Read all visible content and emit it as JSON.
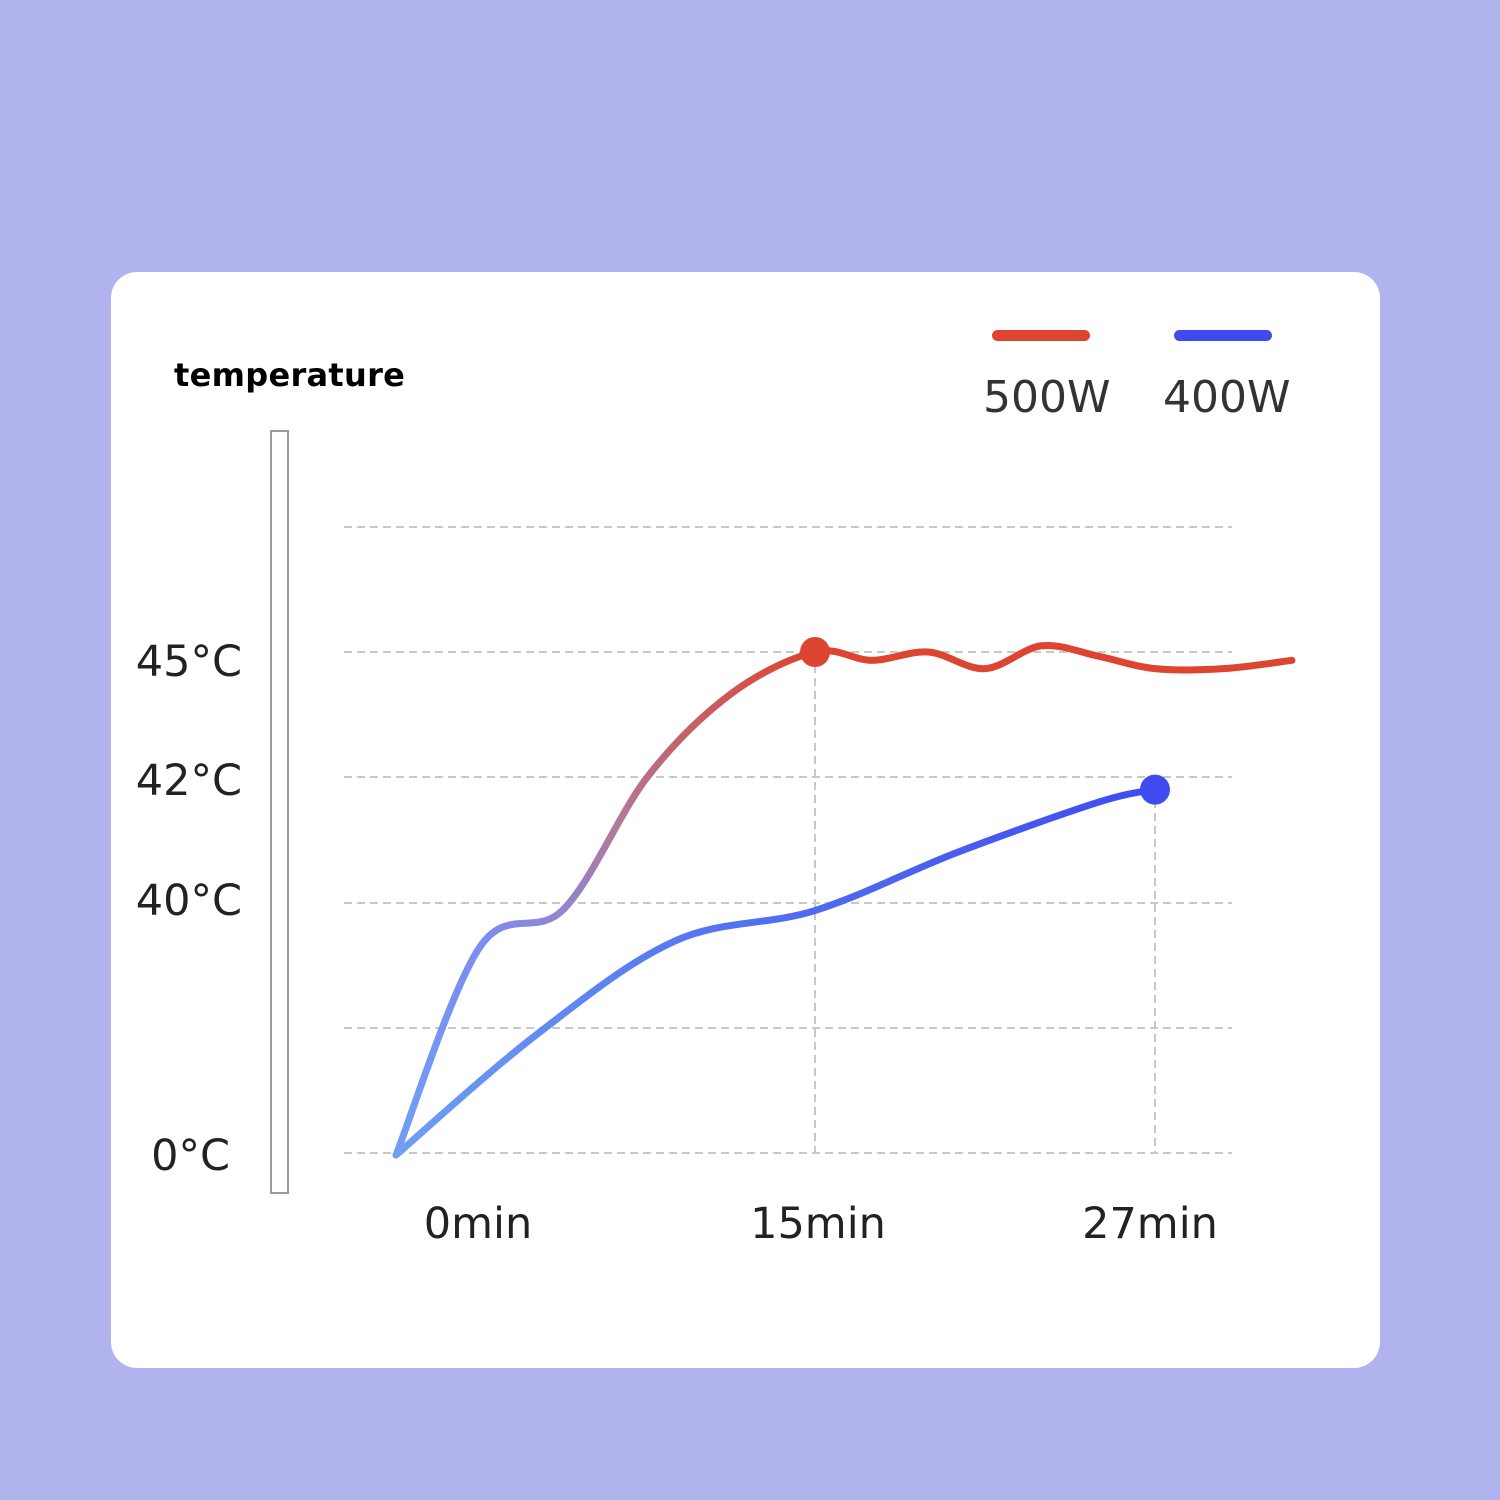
{
  "colors": {
    "background": "#b1b3ef",
    "card": "#ffffff",
    "grid": "#c8c8c8",
    "series_500w": "#dd4431",
    "series_400w": "#3f4bf0",
    "series_start": "#6f9ff3"
  },
  "chart_data": {
    "type": "line",
    "title": "",
    "ylabel": "temperature",
    "xlabel": "",
    "x_ticks": [
      "0min",
      "15min",
      "27min"
    ],
    "y_ticks": [
      "45°C",
      "42°C",
      "40°C",
      "0°C"
    ],
    "legend": [
      "500W",
      "400W"
    ],
    "legend_position": "top-right",
    "grid": true,
    "series": [
      {
        "name": "500W",
        "x": [
          0,
          3,
          6,
          9,
          12,
          15,
          17,
          19,
          21,
          23,
          25,
          27,
          29,
          31
        ],
        "y": [
          0,
          33,
          39,
          42,
          44,
          45,
          44.8,
          45,
          44.6,
          45.1,
          44.9,
          44.6,
          44.6,
          44.8
        ],
        "marker": {
          "x": 15,
          "y": 45
        }
      },
      {
        "name": "400W",
        "x": [
          0,
          5,
          10,
          15,
          20,
          25,
          27
        ],
        "y": [
          0,
          19,
          34,
          38.8,
          40.8,
          41.6,
          41.8
        ],
        "marker": {
          "x": 27,
          "y": 41.8
        }
      }
    ]
  }
}
